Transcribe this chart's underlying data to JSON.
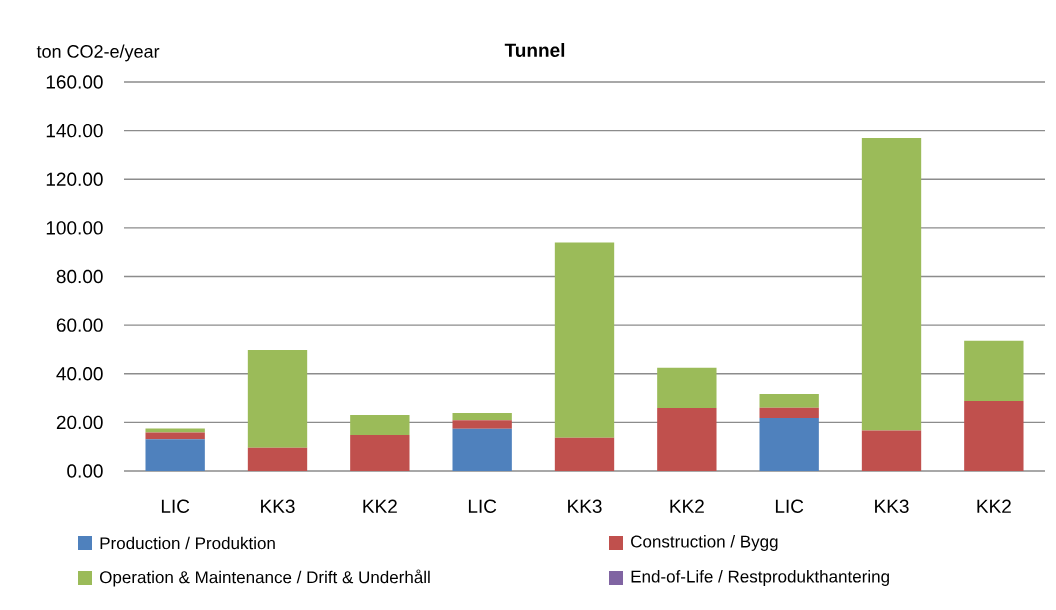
{
  "chart_data": {
    "type": "bar",
    "title": "Tunnel",
    "ylabel": "ton CO2-e/year",
    "categories": [
      "LIC",
      "KK3",
      "KK2",
      "LIC",
      "KK3",
      "KK2",
      "LIC",
      "KK3",
      "KK2"
    ],
    "stacked": true,
    "ylim": [
      0,
      160
    ],
    "yticks": [
      {
        "value": 0,
        "label": "0.00"
      },
      {
        "value": 20,
        "label": "20.00"
      },
      {
        "value": 40,
        "label": "40.00"
      },
      {
        "value": 60,
        "label": "60.00"
      },
      {
        "value": 80,
        "label": "80.00"
      },
      {
        "value": 100,
        "label": "100.00"
      },
      {
        "value": 120,
        "label": "120.00"
      },
      {
        "value": 140,
        "label": "140.00"
      },
      {
        "value": 160,
        "label": "160.00"
      }
    ],
    "grid": "y",
    "legend": "bottom",
    "series": [
      {
        "name": "Production / Produktion",
        "color": "#4f81bd",
        "values": [
          13.1,
          null,
          null,
          17.4,
          null,
          null,
          21.8,
          null,
          null
        ]
      },
      {
        "name": "Construction / Bygg",
        "color": "#c0504d",
        "values": [
          2.7,
          9.6,
          14.8,
          3.5,
          13.7,
          25.9,
          4.2,
          16.7,
          28.8
        ]
      },
      {
        "name": "Operation & Maintenance / Drift & Underhåll",
        "color": "#9bbb59",
        "values": [
          1.7,
          40.2,
          8.2,
          3.0,
          80.3,
          16.6,
          5.7,
          120.3,
          24.8
        ]
      },
      {
        "name": "End-of-Life / Restprodukthantering",
        "color": "#8064a2",
        "values": [
          null,
          null,
          null,
          null,
          null,
          null,
          null,
          null,
          null
        ]
      }
    ]
  }
}
